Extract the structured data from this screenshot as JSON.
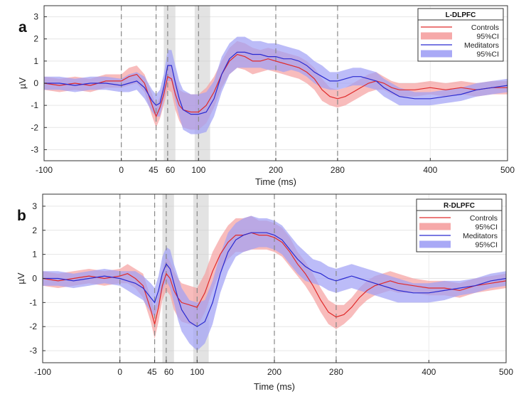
{
  "colors": {
    "controls": "#e02a2a",
    "controls_ci": "#f5a0a0",
    "meditators": "#2a2ad0",
    "meditators_ci": "#a0a0f5",
    "shade": "#cccccc",
    "marker": "#888888"
  },
  "chart_data": [
    {
      "panel": "a",
      "type": "line",
      "title": "L-DLPFC",
      "xlabel": "Time (ms)",
      "ylabel": "µV",
      "xlim": [
        -100,
        500
      ],
      "ylim": [
        -3.5,
        3.5
      ],
      "xticks": [
        -100,
        0,
        45,
        60,
        100,
        200,
        280,
        400,
        500
      ],
      "xtick_labels": [
        "-100",
        "0",
        "45",
        "60",
        "100",
        "200",
        "280",
        "400",
        "500"
      ],
      "yticks": [
        -3,
        -2,
        -1,
        0,
        1,
        2,
        3
      ],
      "ytick_labels": [
        "-3",
        "-2",
        "-1",
        "0",
        "1",
        "2",
        "3"
      ],
      "markers_ms": [
        0,
        45,
        60,
        100,
        200,
        280
      ],
      "shaded_windows_ms": [
        [
          55,
          70
        ],
        [
          95,
          115
        ]
      ],
      "legend": [
        "Controls",
        "95%CI",
        "Meditators",
        "95%CI"
      ],
      "x": [
        -100,
        -80,
        -60,
        -40,
        -20,
        0,
        10,
        20,
        30,
        40,
        45,
        50,
        55,
        60,
        65,
        70,
        75,
        80,
        90,
        100,
        110,
        120,
        130,
        140,
        150,
        160,
        170,
        180,
        190,
        200,
        210,
        220,
        230,
        240,
        250,
        260,
        270,
        280,
        290,
        300,
        310,
        320,
        330,
        340,
        350,
        360,
        380,
        400,
        420,
        440,
        460,
        480,
        500
      ],
      "series": [
        {
          "name": "Controls",
          "values": [
            0.0,
            -0.1,
            0.0,
            -0.1,
            0.1,
            0.1,
            0.3,
            0.4,
            0.0,
            -1.0,
            -1.5,
            -1.1,
            -0.5,
            0.3,
            0.2,
            -0.5,
            -1.0,
            -1.2,
            -1.3,
            -1.3,
            -1.0,
            -0.4,
            0.4,
            1.0,
            1.3,
            1.2,
            1.0,
            1.0,
            1.1,
            1.0,
            0.9,
            0.8,
            0.7,
            0.5,
            0.2,
            -0.3,
            -0.6,
            -0.7,
            -0.6,
            -0.4,
            -0.2,
            0.0,
            0.1,
            0.0,
            -0.2,
            -0.3,
            -0.3,
            -0.2,
            -0.3,
            -0.2,
            -0.3,
            -0.2,
            -0.2
          ],
          "ci": [
            0.3,
            0.3,
            0.3,
            0.3,
            0.3,
            0.3,
            0.4,
            0.4,
            0.4,
            0.5,
            0.5,
            0.5,
            0.5,
            0.6,
            0.6,
            0.7,
            0.7,
            0.8,
            0.8,
            0.8,
            0.8,
            0.7,
            0.6,
            0.6,
            0.6,
            0.6,
            0.6,
            0.5,
            0.5,
            0.5,
            0.5,
            0.5,
            0.5,
            0.5,
            0.5,
            0.5,
            0.4,
            0.4,
            0.4,
            0.4,
            0.4,
            0.4,
            0.4,
            0.3,
            0.3,
            0.3,
            0.3,
            0.3,
            0.3,
            0.3,
            0.3,
            0.3,
            0.3
          ]
        },
        {
          "name": "Meditators",
          "values": [
            0.0,
            0.0,
            -0.1,
            0.0,
            0.0,
            -0.1,
            0.0,
            0.1,
            -0.2,
            -0.8,
            -1.0,
            -0.9,
            -0.2,
            0.8,
            0.8,
            0.0,
            -0.7,
            -1.2,
            -1.4,
            -1.4,
            -1.3,
            -0.7,
            0.4,
            1.1,
            1.4,
            1.4,
            1.3,
            1.3,
            1.2,
            1.2,
            1.1,
            1.1,
            1.0,
            0.8,
            0.5,
            0.3,
            0.1,
            0.1,
            0.2,
            0.3,
            0.3,
            0.2,
            0.1,
            -0.2,
            -0.4,
            -0.6,
            -0.7,
            -0.7,
            -0.6,
            -0.5,
            -0.3,
            -0.2,
            -0.1
          ],
          "ci": [
            0.3,
            0.3,
            0.3,
            0.3,
            0.3,
            0.3,
            0.4,
            0.4,
            0.5,
            0.5,
            0.5,
            0.6,
            0.6,
            0.7,
            0.7,
            0.8,
            0.8,
            0.9,
            0.9,
            0.9,
            0.9,
            0.8,
            0.8,
            0.7,
            0.7,
            0.7,
            0.6,
            0.6,
            0.6,
            0.6,
            0.6,
            0.5,
            0.5,
            0.5,
            0.5,
            0.5,
            0.4,
            0.4,
            0.4,
            0.4,
            0.4,
            0.4,
            0.4,
            0.4,
            0.4,
            0.4,
            0.3,
            0.3,
            0.3,
            0.3,
            0.3,
            0.3,
            0.3
          ]
        }
      ]
    },
    {
      "panel": "b",
      "type": "line",
      "title": "R-DLPFC",
      "xlabel": "Time (ms)",
      "ylabel": "µV",
      "xlim": [
        -100,
        500
      ],
      "ylim": [
        -3.5,
        3.5
      ],
      "xticks": [
        -100,
        0,
        45,
        60,
        100,
        200,
        280,
        400,
        500
      ],
      "xtick_labels": [
        "-100",
        "0",
        "45",
        "60",
        "100",
        "200",
        "280",
        "400",
        "500"
      ],
      "yticks": [
        -3,
        -2,
        -1,
        0,
        1,
        2,
        3
      ],
      "ytick_labels": [
        "-3",
        "-2",
        "-1",
        "0",
        "1",
        "2",
        "3"
      ],
      "markers_ms": [
        0,
        45,
        60,
        100,
        200,
        280
      ],
      "shaded_windows_ms": [
        [
          55,
          70
        ],
        [
          95,
          115
        ]
      ],
      "legend": [
        "Controls",
        "95%CI",
        "Meditators",
        "95%CI"
      ],
      "x": [
        -100,
        -80,
        -60,
        -40,
        -20,
        0,
        10,
        20,
        30,
        40,
        45,
        50,
        55,
        60,
        65,
        70,
        75,
        80,
        90,
        100,
        110,
        120,
        130,
        140,
        150,
        160,
        170,
        180,
        190,
        200,
        210,
        220,
        230,
        240,
        250,
        260,
        270,
        280,
        290,
        300,
        310,
        320,
        330,
        340,
        350,
        360,
        380,
        400,
        420,
        440,
        460,
        480,
        500
      ],
      "series": [
        {
          "name": "Controls",
          "values": [
            0.0,
            -0.1,
            0.0,
            0.1,
            0.0,
            0.1,
            0.2,
            0.0,
            -0.3,
            -1.3,
            -1.9,
            -1.2,
            -0.3,
            0.2,
            0.0,
            -0.5,
            -0.8,
            -1.0,
            -1.1,
            -1.2,
            -0.6,
            0.3,
            1.0,
            1.5,
            1.8,
            1.8,
            1.9,
            1.8,
            1.8,
            1.7,
            1.5,
            1.1,
            0.6,
            0.2,
            -0.3,
            -0.9,
            -1.4,
            -1.6,
            -1.5,
            -1.2,
            -0.8,
            -0.5,
            -0.3,
            -0.2,
            -0.1,
            -0.2,
            -0.3,
            -0.4,
            -0.4,
            -0.5,
            -0.3,
            -0.2,
            -0.1
          ],
          "ci": [
            0.3,
            0.3,
            0.3,
            0.3,
            0.3,
            0.3,
            0.4,
            0.4,
            0.5,
            0.5,
            0.6,
            0.6,
            0.6,
            0.7,
            0.7,
            0.8,
            0.8,
            0.8,
            0.8,
            0.8,
            0.8,
            0.8,
            0.7,
            0.7,
            0.7,
            0.7,
            0.7,
            0.6,
            0.6,
            0.6,
            0.6,
            0.6,
            0.5,
            0.5,
            0.5,
            0.5,
            0.5,
            0.5,
            0.4,
            0.4,
            0.4,
            0.4,
            0.4,
            0.4,
            0.4,
            0.4,
            0.3,
            0.3,
            0.3,
            0.3,
            0.3,
            0.3,
            0.3
          ]
        },
        {
          "name": "Meditators",
          "values": [
            0.0,
            0.0,
            -0.1,
            0.0,
            0.1,
            0.0,
            -0.1,
            -0.2,
            -0.4,
            -0.8,
            -1.0,
            -0.5,
            0.2,
            0.6,
            0.4,
            -0.2,
            -0.8,
            -1.3,
            -1.8,
            -2.0,
            -1.8,
            -1.0,
            0.2,
            1.1,
            1.6,
            1.8,
            1.9,
            1.9,
            1.9,
            1.8,
            1.6,
            1.2,
            0.8,
            0.5,
            0.3,
            0.2,
            0.0,
            -0.1,
            0.0,
            0.1,
            0.0,
            -0.1,
            -0.2,
            -0.3,
            -0.4,
            -0.5,
            -0.6,
            -0.6,
            -0.5,
            -0.4,
            -0.3,
            -0.1,
            0.0
          ],
          "ci": [
            0.3,
            0.3,
            0.3,
            0.3,
            0.3,
            0.3,
            0.4,
            0.5,
            0.5,
            0.6,
            0.6,
            0.6,
            0.7,
            0.7,
            0.8,
            0.8,
            0.9,
            0.9,
            0.9,
            1.0,
            0.9,
            0.9,
            0.8,
            0.8,
            0.7,
            0.7,
            0.7,
            0.6,
            0.6,
            0.6,
            0.6,
            0.6,
            0.6,
            0.6,
            0.5,
            0.5,
            0.5,
            0.5,
            0.5,
            0.5,
            0.5,
            0.5,
            0.5,
            0.5,
            0.5,
            0.5,
            0.4,
            0.4,
            0.4,
            0.3,
            0.3,
            0.3,
            0.3
          ]
        }
      ]
    }
  ]
}
